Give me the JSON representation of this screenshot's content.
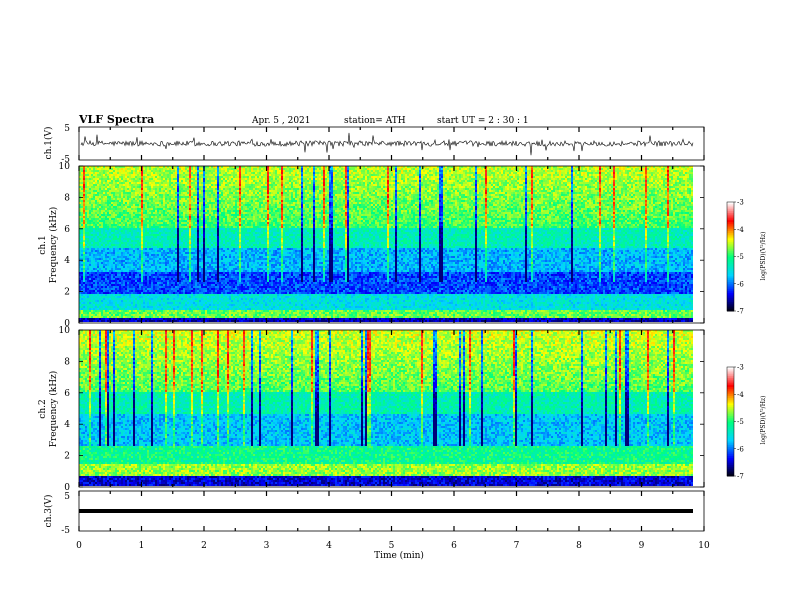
{
  "header": {
    "title": "VLF Spectra",
    "date": "Apr. 5 , 2021",
    "station": "station= ATH",
    "start": "start UT =  2 : 30 : 1"
  },
  "colors": {
    "colormap": [
      "#000000",
      "#0000ff",
      "#00d4ff",
      "#00ff80",
      "#ffff00",
      "#ff0000",
      "#ffffff"
    ]
  },
  "chart_data": [
    {
      "type": "line",
      "ylabel": "ch.1(V)",
      "ylim": [
        -5,
        5
      ],
      "yticks": [
        "5",
        "-5"
      ],
      "xlim": [
        0,
        10
      ],
      "description_series": "ch.1 waveform amplitude",
      "baseline": 0
    },
    {
      "type": "heatmap",
      "ylabel": "ch.1\nFrequency (kHz)",
      "ylabel_lines": [
        "ch.1",
        "Frequency (kHz)"
      ],
      "ylim": [
        0,
        10
      ],
      "yticks": [
        "0",
        "2",
        "4",
        "6",
        "8",
        "10"
      ],
      "xlim": [
        0,
        10
      ],
      "colorbar": {
        "label": "log(PSD)(V²/Hz)",
        "range": [
          -7,
          -3
        ],
        "ticks": [
          "-3",
          "-4",
          "-5",
          "-6",
          "-7"
        ]
      }
    },
    {
      "type": "heatmap",
      "ylabel": "ch.2\nFrequency (kHz)",
      "ylabel_lines": [
        "ch.2",
        "Frequency (kHz)"
      ],
      "ylim": [
        0,
        10
      ],
      "yticks": [
        "0",
        "2",
        "4",
        "6",
        "8",
        "10"
      ],
      "xlim": [
        0,
        10
      ],
      "colorbar": {
        "label": "log(PSD)(V²/Hz)",
        "range": [
          -7,
          -3
        ],
        "ticks": [
          "-3",
          "-4",
          "-5",
          "-6",
          "-7"
        ]
      }
    },
    {
      "type": "line",
      "ylabel": "ch.3(V)",
      "ylim": [
        -5,
        5
      ],
      "yticks": [
        "5",
        "-5"
      ],
      "xlim": [
        0,
        10
      ],
      "baseline": 0
    }
  ],
  "xaxis": {
    "label": "Time (min)",
    "ticks": [
      "0",
      "1",
      "2",
      "3",
      "4",
      "5",
      "6",
      "7",
      "8",
      "9",
      "10"
    ]
  }
}
